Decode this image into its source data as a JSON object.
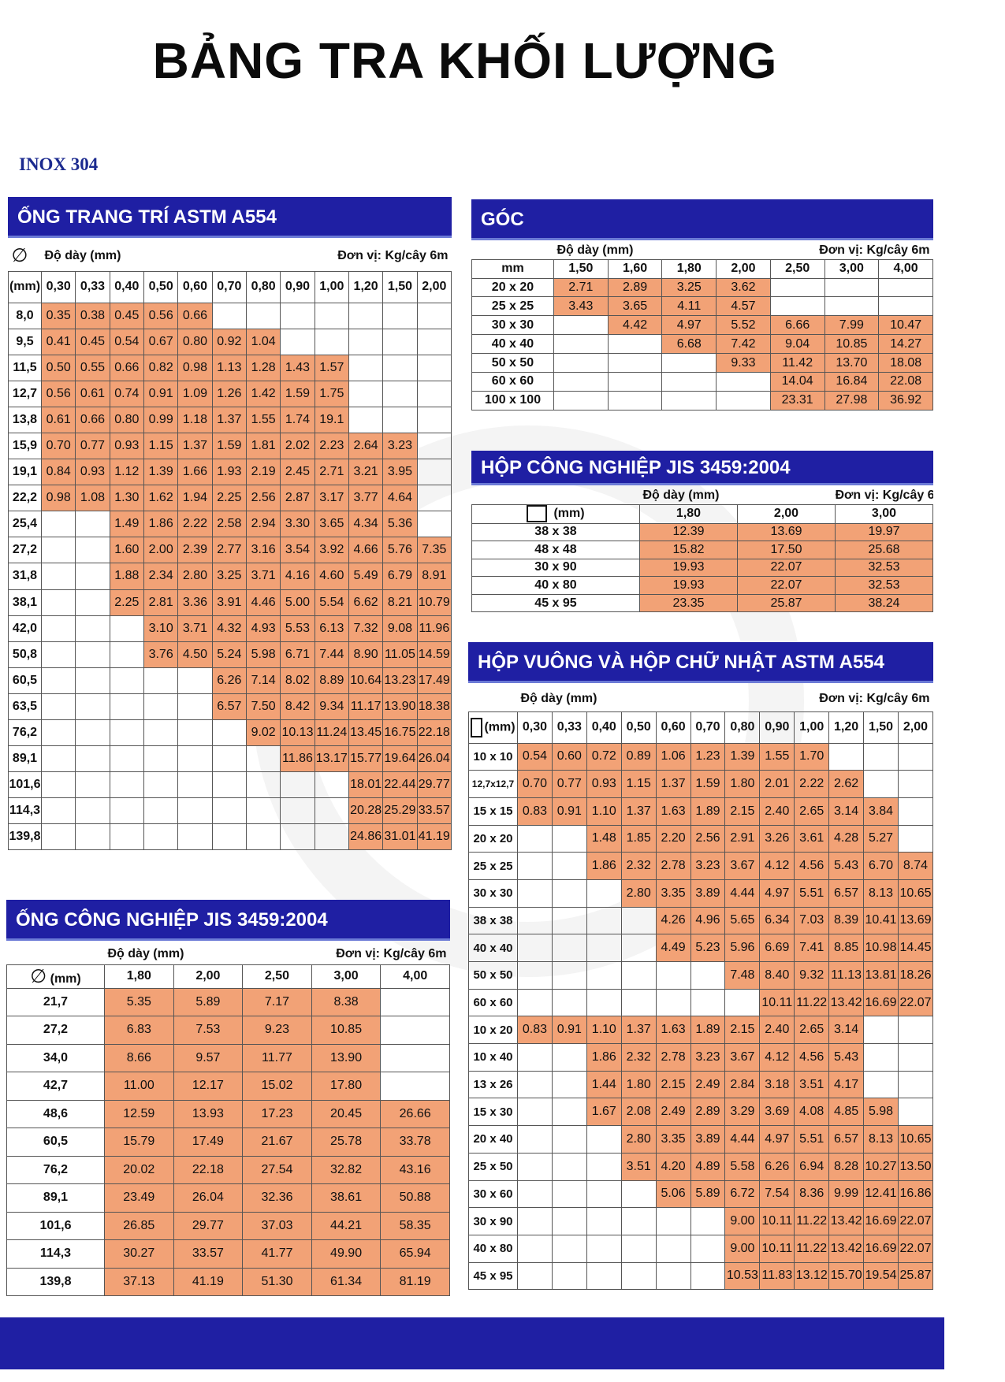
{
  "title": "BẢNG TRA KHỐI LƯỢNG",
  "material": "INOX 304",
  "tables": {
    "ong_trang_tri": {
      "title": "ỐNG TRANG TRÍ ASTM A554",
      "symbol": "∅",
      "thickness_label": "Độ dày (mm)",
      "unit_label": "Đơn vị:  Kg/cây 6m",
      "row_header": "(mm)",
      "thicknesses": [
        "0,30",
        "0,33",
        "0,40",
        "0,50",
        "0,60",
        "0,70",
        "0,80",
        "0,90",
        "1,00",
        "1,20",
        "1,50",
        "2,00"
      ],
      "rows": [
        {
          "size": "8,0",
          "values": [
            "0.35",
            "0.38",
            "0.45",
            "0.56",
            "0.66",
            "",
            "",
            "",
            "",
            "",
            "",
            ""
          ]
        },
        {
          "size": "9,5",
          "values": [
            "0.41",
            "0.45",
            "0.54",
            "0.67",
            "0.80",
            "0.92",
            "1.04",
            "",
            "",
            "",
            "",
            ""
          ]
        },
        {
          "size": "11,5",
          "values": [
            "0.50",
            "0.55",
            "0.66",
            "0.82",
            "0.98",
            "1.13",
            "1.28",
            "1.43",
            "1.57",
            "",
            "",
            ""
          ]
        },
        {
          "size": "12,7",
          "values": [
            "0.56",
            "0.61",
            "0.74",
            "0.91",
            "1.09",
            "1.26",
            "1.42",
            "1.59",
            "1.75",
            "",
            "",
            ""
          ]
        },
        {
          "size": "13,8",
          "values": [
            "0.61",
            "0.66",
            "0.80",
            "0.99",
            "1.18",
            "1.37",
            "1.55",
            "1.74",
            "19.1",
            "",
            "",
            ""
          ]
        },
        {
          "size": "15,9",
          "values": [
            "0.70",
            "0.77",
            "0.93",
            "1.15",
            "1.37",
            "1.59",
            "1.81",
            "2.02",
            "2.23",
            "2.64",
            "3.23",
            ""
          ]
        },
        {
          "size": "19,1",
          "values": [
            "0.84",
            "0.93",
            "1.12",
            "1.39",
            "1.66",
            "1.93",
            "2.19",
            "2.45",
            "2.71",
            "3.21",
            "3.95",
            ""
          ]
        },
        {
          "size": "22,2",
          "values": [
            "0.98",
            "1.08",
            "1.30",
            "1.62",
            "1.94",
            "2.25",
            "2.56",
            "2.87",
            "3.17",
            "3.77",
            "4.64",
            ""
          ]
        },
        {
          "size": "25,4",
          "values": [
            "",
            "",
            "1.49",
            "1.86",
            "2.22",
            "2.58",
            "2.94",
            "3.30",
            "3.65",
            "4.34",
            "5.36",
            ""
          ]
        },
        {
          "size": "27,2",
          "values": [
            "",
            "",
            "1.60",
            "2.00",
            "2.39",
            "2.77",
            "3.16",
            "3.54",
            "3.92",
            "4.66",
            "5.76",
            "7.35"
          ]
        },
        {
          "size": "31,8",
          "values": [
            "",
            "",
            "1.88",
            "2.34",
            "2.80",
            "3.25",
            "3.71",
            "4.16",
            "4.60",
            "5.49",
            "6.79",
            "8.91"
          ]
        },
        {
          "size": "38,1",
          "values": [
            "",
            "",
            "2.25",
            "2.81",
            "3.36",
            "3.91",
            "4.46",
            "5.00",
            "5.54",
            "6.62",
            "8.21",
            "10.79"
          ]
        },
        {
          "size": "42,0",
          "values": [
            "",
            "",
            "",
            "3.10",
            "3.71",
            "4.32",
            "4.93",
            "5.53",
            "6.13",
            "7.32",
            "9.08",
            "11.96"
          ]
        },
        {
          "size": "50,8",
          "values": [
            "",
            "",
            "",
            "3.76",
            "4.50",
            "5.24",
            "5.98",
            "6.71",
            "7.44",
            "8.90",
            "11.05",
            "14.59"
          ]
        },
        {
          "size": "60,5",
          "values": [
            "",
            "",
            "",
            "",
            "",
            "6.26",
            "7.14",
            "8.02",
            "8.89",
            "10.64",
            "13.23",
            "17.49"
          ]
        },
        {
          "size": "63,5",
          "values": [
            "",
            "",
            "",
            "",
            "",
            "6.57",
            "7.50",
            "8.42",
            "9.34",
            "11.17",
            "13.90",
            "18.38"
          ]
        },
        {
          "size": "76,2",
          "values": [
            "",
            "",
            "",
            "",
            "",
            "",
            "9.02",
            "10.13",
            "11.24",
            "13.45",
            "16.75",
            "22.18"
          ]
        },
        {
          "size": "89,1",
          "values": [
            "",
            "",
            "",
            "",
            "",
            "",
            "",
            "11.86",
            "13.17",
            "15.77",
            "19.64",
            "26.04"
          ]
        },
        {
          "size": "101,6",
          "values": [
            "",
            "",
            "",
            "",
            "",
            "",
            "",
            "",
            "",
            "18.01",
            "22.44",
            "29.77"
          ]
        },
        {
          "size": "114,3",
          "values": [
            "",
            "",
            "",
            "",
            "",
            "",
            "",
            "",
            "",
            "20.28",
            "25.29",
            "33.57"
          ]
        },
        {
          "size": "139,8",
          "values": [
            "",
            "",
            "",
            "",
            "",
            "",
            "",
            "",
            "",
            "24.86",
            "31.01",
            "41.19"
          ]
        }
      ]
    },
    "ong_cong_nghiep": {
      "title": "ỐNG CÔNG NGHIỆP JIS 3459:2004",
      "symbol": "∅",
      "row_header": "(mm)",
      "thickness_label": "Độ dày (mm)",
      "unit_label": "Đơn vị:  Kg/cây 6m",
      "thicknesses": [
        "1,80",
        "2,00",
        "2,50",
        "3,00",
        "4,00"
      ],
      "rows": [
        {
          "size": "21,7",
          "values": [
            "5.35",
            "5.89",
            "7.17",
            "8.38",
            ""
          ]
        },
        {
          "size": "27,2",
          "values": [
            "6.83",
            "7.53",
            "9.23",
            "10.85",
            ""
          ]
        },
        {
          "size": "34,0",
          "values": [
            "8.66",
            "9.57",
            "11.77",
            "13.90",
            ""
          ]
        },
        {
          "size": "42,7",
          "values": [
            "11.00",
            "12.17",
            "15.02",
            "17.80",
            ""
          ]
        },
        {
          "size": "48,6",
          "values": [
            "12.59",
            "13.93",
            "17.23",
            "20.45",
            "26.66"
          ]
        },
        {
          "size": "60,5",
          "values": [
            "15.79",
            "17.49",
            "21.67",
            "25.78",
            "33.78"
          ]
        },
        {
          "size": "76,2",
          "values": [
            "20.02",
            "22.18",
            "27.54",
            "32.82",
            "43.16"
          ]
        },
        {
          "size": "89,1",
          "values": [
            "23.49",
            "26.04",
            "32.36",
            "38.61",
            "50.88"
          ]
        },
        {
          "size": "101,6",
          "values": [
            "26.85",
            "29.77",
            "37.03",
            "44.21",
            "58.35"
          ]
        },
        {
          "size": "114,3",
          "values": [
            "30.27",
            "33.57",
            "41.77",
            "49.90",
            "65.94"
          ]
        },
        {
          "size": "139,8",
          "values": [
            "37.13",
            "41.19",
            "51.30",
            "61.34",
            "81.19"
          ]
        }
      ]
    },
    "goc": {
      "title": "GÓC",
      "thickness_label": "Độ dày (mm)",
      "unit_label": "Đơn vị:  Kg/cây 6m",
      "row_header": "mm",
      "thicknesses": [
        "1,50",
        "1,60",
        "1,80",
        "2,00",
        "2,50",
        "3,00",
        "4,00"
      ],
      "rows": [
        {
          "size": "20 x 20",
          "values": [
            "2.71",
            "2.89",
            "3.25",
            "3.62",
            "",
            "",
            ""
          ]
        },
        {
          "size": "25 x 25",
          "values": [
            "3.43",
            "3.65",
            "4.11",
            "4.57",
            "",
            "",
            ""
          ]
        },
        {
          "size": "30 x 30",
          "values": [
            "",
            "4.42",
            "4.97",
            "5.52",
            "6.66",
            "7.99",
            "10.47"
          ]
        },
        {
          "size": "40 x 40",
          "values": [
            "",
            "",
            "6.68",
            "7.42",
            "9.04",
            "10.85",
            "14.27"
          ]
        },
        {
          "size": "50 x 50",
          "values": [
            "",
            "",
            "",
            "9.33",
            "11.42",
            "13.70",
            "18.08"
          ]
        },
        {
          "size": "60 x 60",
          "values": [
            "",
            "",
            "",
            "",
            "14.04",
            "16.84",
            "22.08"
          ]
        },
        {
          "size": "100 x 100",
          "values": [
            "",
            "",
            "",
            "",
            "23.31",
            "27.98",
            "36.92"
          ]
        }
      ]
    },
    "hop_cong_nghiep": {
      "title": "HỘP CÔNG NGHIỆP JIS 3459:2004",
      "thickness_label": "Độ dày (mm)",
      "unit_label": "Đơn vị:  Kg/cây 6m",
      "row_header": "(mm)",
      "thicknesses": [
        "1,80",
        "2,00",
        "3,00"
      ],
      "rows": [
        {
          "size": "38 x 38",
          "values": [
            "12.39",
            "13.69",
            "19.97"
          ]
        },
        {
          "size": "48 x 48",
          "values": [
            "15.82",
            "17.50",
            "25.68"
          ]
        },
        {
          "size": "30 x 90",
          "values": [
            "19.93",
            "22.07",
            "32.53"
          ]
        },
        {
          "size": "40 x 80",
          "values": [
            "19.93",
            "22.07",
            "32.53"
          ]
        },
        {
          "size": "45 x 95",
          "values": [
            "23.35",
            "25.87",
            "38.24"
          ]
        }
      ]
    },
    "hop_vuong": {
      "title": "HỘP VUÔNG VÀ HỘP CHỮ NHẬT ASTM A554",
      "thickness_label": "Độ dày (mm)",
      "unit_label": "Đơn vị:  Kg/cây 6m",
      "row_header": "(mm)",
      "thicknesses": [
        "0,30",
        "0,33",
        "0,40",
        "0,50",
        "0,60",
        "0,70",
        "0,80",
        "0,90",
        "1,00",
        "1,20",
        "1,50",
        "2,00"
      ],
      "rows": [
        {
          "size": "10 x 10",
          "values": [
            "0.54",
            "0.60",
            "0.72",
            "0.89",
            "1.06",
            "1.23",
            "1.39",
            "1.55",
            "1.70",
            "",
            "",
            ""
          ]
        },
        {
          "size": "12,7x12,7",
          "values": [
            "0.70",
            "0.77",
            "0.93",
            "1.15",
            "1.37",
            "1.59",
            "1.80",
            "2.01",
            "2.22",
            "2.62",
            "",
            ""
          ]
        },
        {
          "size": "15 x 15",
          "values": [
            "0.83",
            "0.91",
            "1.10",
            "1.37",
            "1.63",
            "1.89",
            "2.15",
            "2.40",
            "2.65",
            "3.14",
            "3.84",
            ""
          ]
        },
        {
          "size": "20 x 20",
          "values": [
            "",
            "",
            "1.48",
            "1.85",
            "2.20",
            "2.56",
            "2.91",
            "3.26",
            "3.61",
            "4.28",
            "5.27",
            ""
          ]
        },
        {
          "size": "25 x 25",
          "values": [
            "",
            "",
            "1.86",
            "2.32",
            "2.78",
            "3.23",
            "3.67",
            "4.12",
            "4.56",
            "5.43",
            "6.70",
            "8.74"
          ]
        },
        {
          "size": "30 x 30",
          "values": [
            "",
            "",
            "",
            "2.80",
            "3.35",
            "3.89",
            "4.44",
            "4.97",
            "5.51",
            "6.57",
            "8.13",
            "10.65"
          ]
        },
        {
          "size": "38 x 38",
          "values": [
            "",
            "",
            "",
            "",
            "4.26",
            "4.96",
            "5.65",
            "6.34",
            "7.03",
            "8.39",
            "10.41",
            "13.69"
          ]
        },
        {
          "size": "40 x 40",
          "values": [
            "",
            "",
            "",
            "",
            "4.49",
            "5.23",
            "5.96",
            "6.69",
            "7.41",
            "8.85",
            "10.98",
            "14.45"
          ]
        },
        {
          "size": "50 x 50",
          "values": [
            "",
            "",
            "",
            "",
            "",
            "",
            "7.48",
            "8.40",
            "9.32",
            "11.13",
            "13.81",
            "18.26"
          ]
        },
        {
          "size": "60 x 60",
          "values": [
            "",
            "",
            "",
            "",
            "",
            "",
            "",
            "10.11",
            "11.22",
            "13.42",
            "16.69",
            "22.07"
          ]
        },
        {
          "size": "10 x 20",
          "values": [
            "0.83",
            "0.91",
            "1.10",
            "1.37",
            "1.63",
            "1.89",
            "2.15",
            "2.40",
            "2.65",
            "3.14",
            "",
            ""
          ]
        },
        {
          "size": "10 x 40",
          "values": [
            "",
            "",
            "1.86",
            "2.32",
            "2.78",
            "3.23",
            "3.67",
            "4.12",
            "4.56",
            "5.43",
            "",
            ""
          ]
        },
        {
          "size": "13 x 26",
          "values": [
            "",
            "",
            "1.44",
            "1.80",
            "2.15",
            "2.49",
            "2.84",
            "3.18",
            "3.51",
            "4.17",
            "",
            ""
          ]
        },
        {
          "size": "15 x 30",
          "values": [
            "",
            "",
            "1.67",
            "2.08",
            "2.49",
            "2.89",
            "3.29",
            "3.69",
            "4.08",
            "4.85",
            "5.98",
            ""
          ]
        },
        {
          "size": "20 x 40",
          "values": [
            "",
            "",
            "",
            "2.80",
            "3.35",
            "3.89",
            "4.44",
            "4.97",
            "5.51",
            "6.57",
            "8.13",
            "10.65"
          ]
        },
        {
          "size": "25 x 50",
          "values": [
            "",
            "",
            "",
            "3.51",
            "4.20",
            "4.89",
            "5.58",
            "6.26",
            "6.94",
            "8.28",
            "10.27",
            "13.50"
          ]
        },
        {
          "size": "30 x 60",
          "values": [
            "",
            "",
            "",
            "",
            "5.06",
            "5.89",
            "6.72",
            "7.54",
            "8.36",
            "9.99",
            "12.41",
            "16.86"
          ]
        },
        {
          "size": "30 x 90",
          "values": [
            "",
            "",
            "",
            "",
            "",
            "",
            "9.00",
            "10.11",
            "11.22",
            "13.42",
            "16.69",
            "22.07"
          ]
        },
        {
          "size": "40 x 80",
          "values": [
            "",
            "",
            "",
            "",
            "",
            "",
            "9.00",
            "10.11",
            "11.22",
            "13.42",
            "16.69",
            "22.07"
          ]
        },
        {
          "size": "45 x 95",
          "values": [
            "",
            "",
            "",
            "",
            "",
            "",
            "10.53",
            "11.83",
            "13.12",
            "15.70",
            "19.54",
            "25.87"
          ]
        }
      ]
    }
  },
  "colors": {
    "banner": "#1f1fa3",
    "filled_cell": "#f2a276",
    "material_text": "#1b2a8f"
  }
}
